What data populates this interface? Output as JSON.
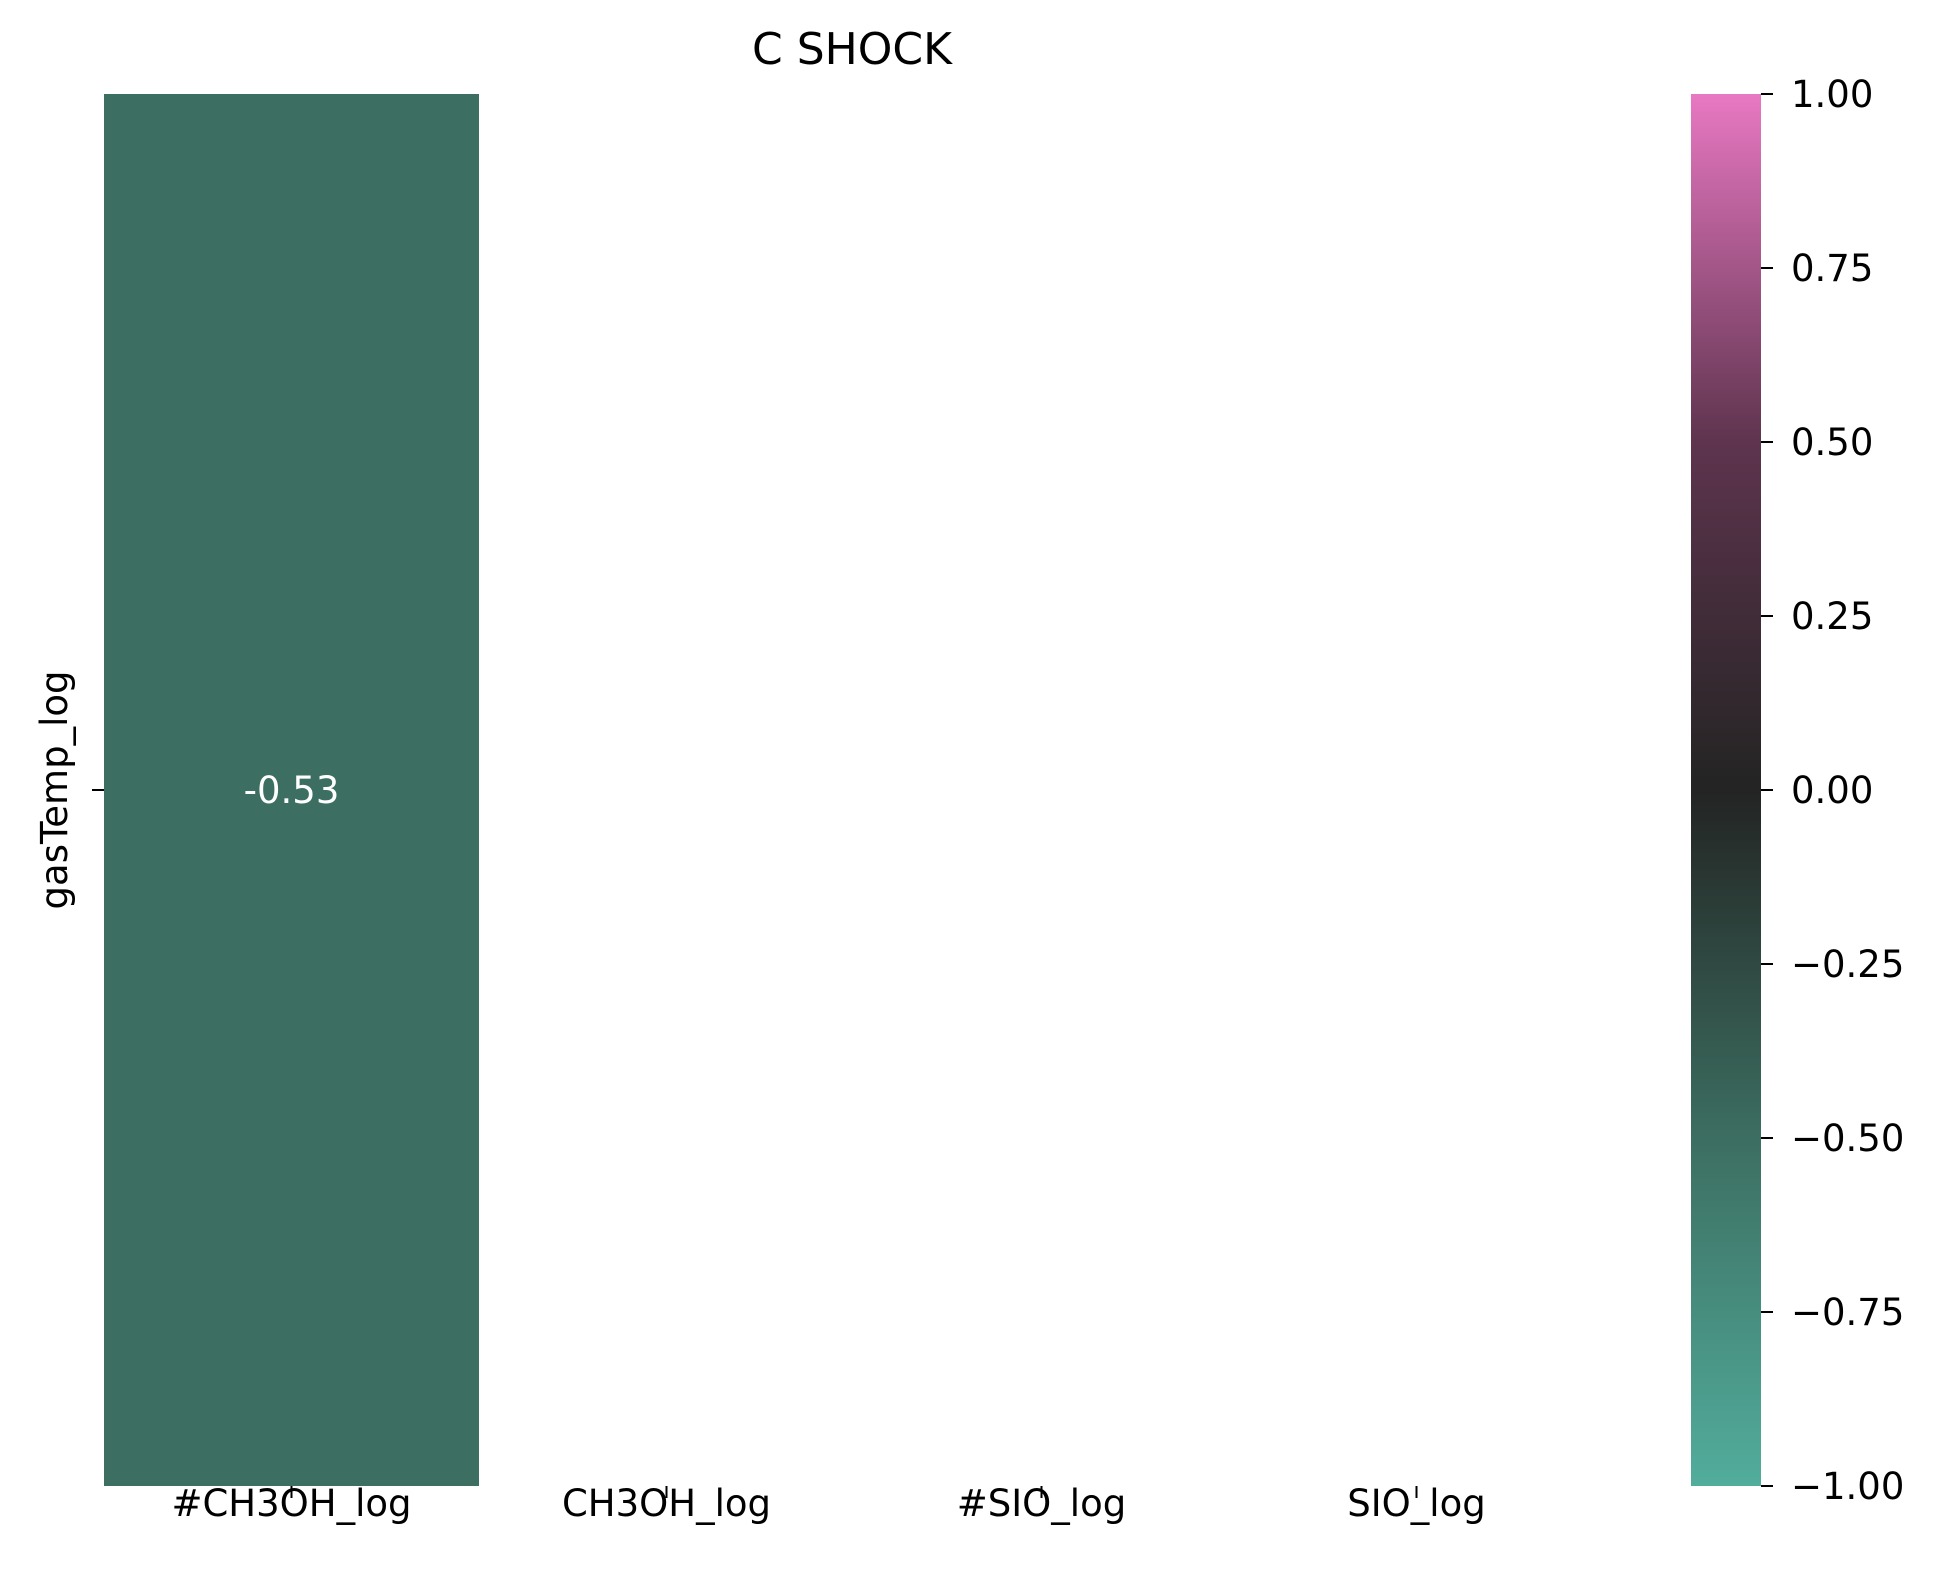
{
  "chart_data": {
    "type": "heatmap",
    "title": "C SHOCK",
    "x_categories": [
      "#CH3OH_log",
      "CH3OH_log",
      "#SIO_log",
      "SIO_log"
    ],
    "y_categories": [
      "gasTemp_log"
    ],
    "values": [
      [
        -0.53,
        null,
        null,
        null
      ]
    ],
    "annotations": [
      [
        "-0.53",
        "",
        "",
        ""
      ]
    ],
    "xlabel": "",
    "ylabel": "",
    "colorbar": {
      "vmin": -1.0,
      "vmax": 1.0,
      "ticks": [
        1.0,
        0.75,
        0.5,
        0.25,
        0.0,
        -0.25,
        -0.5,
        -0.75,
        -1.0
      ],
      "tick_labels": [
        "1.00",
        "0.75",
        "0.50",
        "0.25",
        "0.00",
        "−0.25",
        "−0.50",
        "−0.75",
        "−1.00"
      ],
      "colors": {
        "low": "#52ad9c",
        "mid_low": "#3c6e61",
        "center": "#232423",
        "mid_high": "#5e344e",
        "high": "#e878c2"
      }
    },
    "cell_color": "#3c6e61",
    "annotation_color": "#ffffff"
  }
}
